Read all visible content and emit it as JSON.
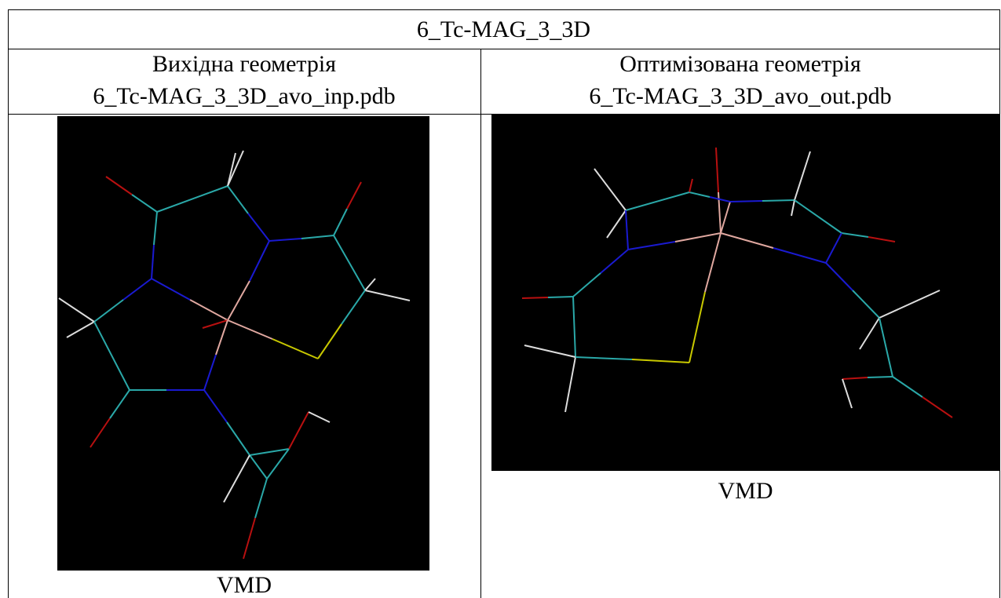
{
  "table": {
    "title": "6_Tc-MAG_3_3D",
    "columns": [
      {
        "heading": "Вихідна геометрія",
        "file": "6_Tc-MAG_3_3D_avo_inp.pdb",
        "caption": "VMD"
      },
      {
        "heading": "Оптимізована геометрія",
        "file": "6_Tc-MAG_3_3D_avo_out.pdb",
        "caption": "VMD"
      }
    ]
  }
}
